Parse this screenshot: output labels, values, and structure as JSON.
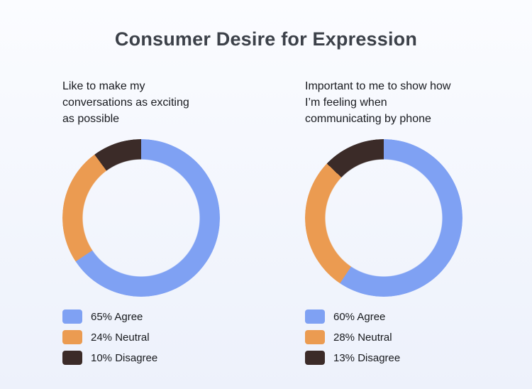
{
  "page": {
    "title": "Consumer Desire for Expression"
  },
  "colors": {
    "background_top": "#FBFCFF",
    "background_bottom": "#EDF1FB",
    "title_text": "#3C4149",
    "body_text": "#17191D",
    "agree_blue": "#7FA1F3",
    "neutral_orange": "#EB9B51",
    "disagree_brown": "#3B2B28"
  },
  "chart_data": [
    {
      "type": "pie",
      "variant": "donut",
      "title": "Like to make my\nconversations as exciting\nas possible",
      "labels": [
        "Agree",
        "Neutral",
        "Disagree"
      ],
      "values": [
        65,
        24,
        10
      ],
      "unit": "%",
      "colors": [
        "#7FA1F3",
        "#EB9B51",
        "#3B2B28"
      ],
      "start_angle_deg": 0,
      "direction": "clockwise",
      "legend_position": "bottom",
      "legend": [
        "65% Agree",
        "24% Neutral",
        "10% Disagree"
      ]
    },
    {
      "type": "pie",
      "variant": "donut",
      "title": "Important to me to show how\nI’m feeling when\ncommunicating by phone",
      "labels": [
        "Agree",
        "Neutral",
        "Disagree"
      ],
      "values": [
        60,
        28,
        13
      ],
      "unit": "%",
      "colors": [
        "#7FA1F3",
        "#EB9B51",
        "#3B2B28"
      ],
      "start_angle_deg": 0,
      "direction": "clockwise",
      "legend_position": "bottom",
      "legend": [
        "60% Agree",
        "28% Neutral",
        "13% Disagree"
      ]
    }
  ]
}
